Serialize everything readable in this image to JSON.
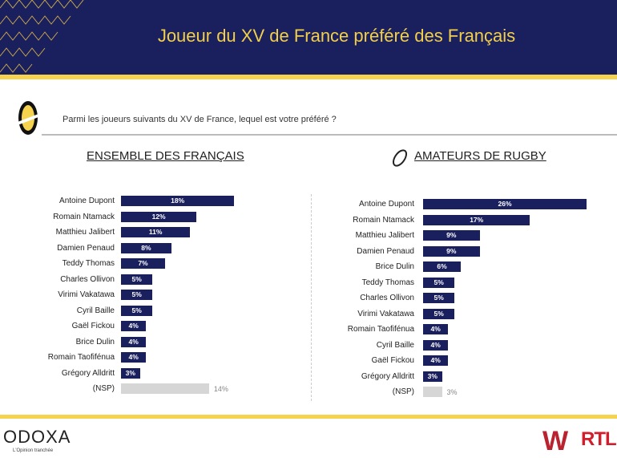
{
  "header": {
    "title": "Joueur du XV de France préféré des Français"
  },
  "question": "Parmi les joueurs suivants du XV de France, lequel est votre préféré ?",
  "footer": {
    "brand": "ODOXA",
    "tagline": "L'Opinion tranchée",
    "partner1": "WINAMAX",
    "partner2": "RTL"
  },
  "colors": {
    "navy": "#1a1f5e",
    "yellow": "#f5d34f",
    "nsp": "#d6d6d6"
  },
  "chart_data": [
    {
      "type": "bar",
      "orientation": "horizontal",
      "title": "ENSEMBLE DES FRANÇAIS",
      "unit": "%",
      "categories": [
        "Antoine Dupont",
        "Romain Ntamack",
        "Matthieu Jalibert",
        "Damien Penaud",
        "Teddy Thomas",
        "Charles Ollivon",
        "Virimi Vakatawa",
        "Cyril Baille",
        "Gaël Fickou",
        "Brice Dulin",
        "Romain Taofifénua",
        "Grégory Alldritt",
        "(NSP)"
      ],
      "values": [
        18,
        12,
        11,
        8,
        7,
        5,
        5,
        5,
        4,
        4,
        4,
        3,
        14
      ]
    },
    {
      "type": "bar",
      "orientation": "horizontal",
      "title": "AMATEURS DE RUGBY",
      "unit": "%",
      "categories": [
        "Antoine Dupont",
        "Romain Ntamack",
        "Matthieu Jalibert",
        "Damien Penaud",
        "Brice Dulin",
        "Teddy Thomas",
        "Charles Ollivon",
        "Virimi Vakatawa",
        "Romain Taofifénua",
        "Cyril Baille",
        "Gaël Fickou",
        "Grégory Alldritt",
        "(NSP)"
      ],
      "values": [
        26,
        17,
        9,
        9,
        6,
        5,
        5,
        5,
        4,
        4,
        4,
        3,
        3
      ]
    }
  ]
}
